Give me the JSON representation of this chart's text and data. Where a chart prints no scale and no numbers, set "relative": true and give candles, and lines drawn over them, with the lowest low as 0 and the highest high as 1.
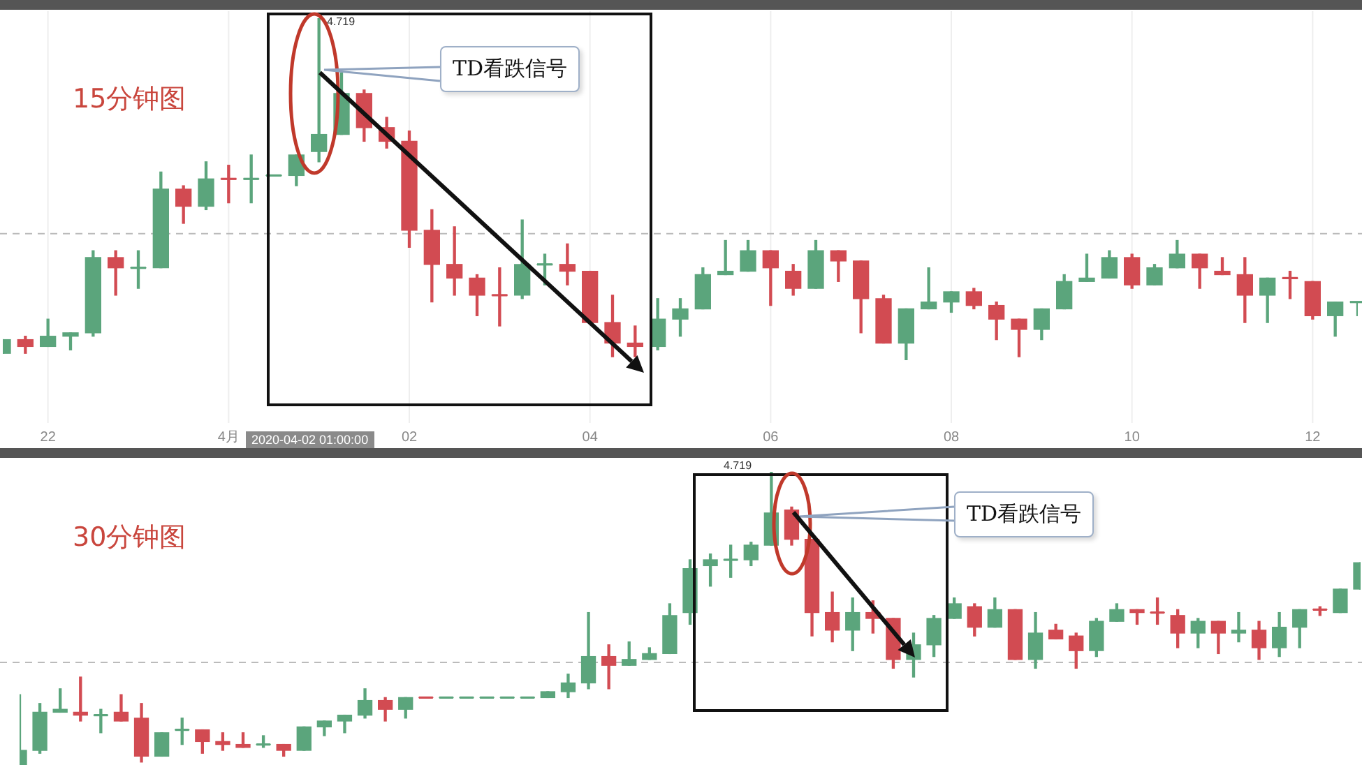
{
  "chart_data": [
    {
      "type": "candlestick",
      "title": "15分钟图",
      "relative": true,
      "grid": "x",
      "tick_labels": "x",
      "categories": [
        null,
        null,
        "22",
        null,
        null,
        null,
        null,
        null,
        null,
        null,
        "4月",
        null,
        null,
        null,
        null,
        null,
        null,
        null,
        "02",
        null,
        null,
        null,
        null,
        null,
        null,
        null,
        "04",
        null,
        null,
        null,
        null,
        null,
        null,
        null,
        "06",
        null,
        null,
        null,
        null,
        null,
        null,
        null,
        "08",
        null,
        null,
        null,
        null,
        null,
        null,
        null,
        "10",
        null,
        null,
        null,
        null,
        null,
        null,
        null,
        "12",
        null,
        null
      ],
      "ohlc": [
        [
          0.02,
          0.06,
          0.02,
          0.06
        ],
        [
          0.06,
          0.07,
          0.02,
          0.04
        ],
        [
          0.04,
          0.12,
          0.04,
          0.07
        ],
        [
          0.07,
          0.08,
          0.03,
          0.08
        ],
        [
          0.08,
          0.32,
          0.07,
          0.3
        ],
        [
          0.3,
          0.32,
          0.19,
          0.27
        ],
        [
          0.27,
          0.32,
          0.21,
          0.27
        ],
        [
          0.27,
          0.55,
          0.27,
          0.5
        ],
        [
          0.5,
          0.51,
          0.4,
          0.45
        ],
        [
          0.45,
          0.58,
          0.44,
          0.53
        ],
        [
          0.53,
          0.57,
          0.46,
          0.53
        ],
        [
          0.53,
          0.6,
          0.46,
          0.53
        ],
        [
          0.54,
          0.54,
          0.54,
          0.54
        ],
        [
          0.54,
          0.6,
          0.51,
          0.6
        ],
        [
          0.61,
          1,
          0.58,
          0.66
        ],
        [
          0.66,
          0.84,
          0.66,
          0.78
        ],
        [
          0.78,
          0.79,
          0.64,
          0.68
        ],
        [
          0.68,
          0.71,
          0.62,
          0.64
        ],
        [
          0.64,
          0.67,
          0.33,
          0.38
        ],
        [
          0.38,
          0.44,
          0.17,
          0.28
        ],
        [
          0.28,
          0.39,
          0.19,
          0.24
        ],
        [
          0.24,
          0.25,
          0.13,
          0.19
        ],
        [
          0.19,
          0.27,
          0.1,
          0.19
        ],
        [
          0.19,
          0.41,
          0.18,
          0.28
        ],
        [
          0.28,
          0.31,
          0.22,
          0.28
        ],
        [
          0.28,
          0.34,
          0.22,
          0.26
        ],
        [
          0.26,
          0.26,
          0.11,
          0.11
        ],
        [
          0.11,
          0.19,
          0.01,
          0.05
        ],
        [
          0.05,
          0.1,
          0.01,
          0.04
        ],
        [
          0.04,
          0.18,
          0.03,
          0.12
        ],
        [
          0.12,
          0.18,
          0.07,
          0.15
        ],
        [
          0.15,
          0.27,
          0.15,
          0.25
        ],
        [
          0.25,
          0.35,
          0.25,
          0.26
        ],
        [
          0.26,
          0.35,
          0.26,
          0.32
        ],
        [
          0.32,
          0.32,
          0.16,
          0.27
        ],
        [
          0.26,
          0.28,
          0.19,
          0.21
        ],
        [
          0.21,
          0.35,
          0.21,
          0.32
        ],
        [
          0.32,
          0.32,
          0.23,
          0.29
        ],
        [
          0.29,
          0.29,
          0.08,
          0.18
        ],
        [
          0.18,
          0.19,
          0.05,
          0.05
        ],
        [
          0.05,
          0.15,
          0,
          0.15
        ],
        [
          0.15,
          0.27,
          0.15,
          0.17
        ],
        [
          0.17,
          0.2,
          0.14,
          0.2
        ],
        [
          0.2,
          0.21,
          0.15,
          0.16
        ],
        [
          0.16,
          0.17,
          0.06,
          0.12
        ],
        [
          0.12,
          0.12,
          0.01,
          0.09
        ],
        [
          0.09,
          0.15,
          0.06,
          0.15
        ],
        [
          0.15,
          0.25,
          0.15,
          0.23
        ],
        [
          0.23,
          0.31,
          0.23,
          0.24
        ],
        [
          0.24,
          0.32,
          0.24,
          0.3
        ],
        [
          0.3,
          0.31,
          0.21,
          0.22
        ],
        [
          0.22,
          0.28,
          0.22,
          0.27
        ],
        [
          0.27,
          0.35,
          0.27,
          0.31
        ],
        [
          0.31,
          0.31,
          0.21,
          0.27
        ],
        [
          0.26,
          0.3,
          0.25,
          0.25
        ],
        [
          0.25,
          0.3,
          0.11,
          0.19
        ],
        [
          0.19,
          0.24,
          0.11,
          0.24
        ],
        [
          0.24,
          0.26,
          0.18,
          0.24
        ],
        [
          0.23,
          0.23,
          0.12,
          0.13
        ],
        [
          0.13,
          0.17,
          0.07,
          0.17
        ],
        [
          0.17,
          0.17,
          0.13,
          0.17
        ]
      ],
      "colors": [
        "#5ba57c",
        "#d24b52",
        "#5ba57c",
        "#5ba57c",
        "#5ba57c",
        "#d24b52",
        "#5ba57c",
        "#5ba57c",
        "#d24b52",
        "#5ba57c",
        "#d24b52",
        "#5ba57c",
        "#5ba57c",
        "#5ba57c",
        "#5ba57c",
        "#5ba57c",
        "#d24b52",
        "#d24b52",
        "#d24b52",
        "#d24b52",
        "#d24b52",
        "#d24b52",
        "#d24b52",
        "#5ba57c",
        "#5ba57c",
        "#d24b52",
        "#d24b52",
        "#d24b52",
        "#d24b52",
        "#5ba57c",
        "#5ba57c",
        "#5ba57c",
        "#5ba57c",
        "#5ba57c",
        "#d24b52",
        "#d24b52",
        "#5ba57c",
        "#d24b52",
        "#d24b52",
        "#d24b52",
        "#5ba57c",
        "#5ba57c",
        "#5ba57c",
        "#d24b52",
        "#d24b52",
        "#d24b52",
        "#5ba57c",
        "#5ba57c",
        "#5ba57c",
        "#5ba57c",
        "#d24b52",
        "#5ba57c",
        "#5ba57c",
        "#d24b52",
        "#d24b52",
        "#d24b52",
        "#5ba57c",
        "#d24b52",
        "#d24b52",
        "#5ba57c",
        "#5ba57c"
      ],
      "ref_lines": [
        {
          "axis": "y",
          "value": 0.37,
          "color": "#bbbbbb",
          "line_style": "dashed"
        }
      ],
      "annotations": [
        "TD看跌信号",
        "4.719",
        "2020-04-02 01:00:00"
      ]
    },
    {
      "type": "candlestick",
      "title": "30分钟图",
      "relative": true,
      "tick_labels": false,
      "categories": [
        null,
        null,
        null,
        null,
        null,
        null,
        null,
        null,
        null,
        null,
        null,
        null,
        null,
        null,
        null,
        null,
        null,
        null,
        null,
        null,
        null,
        null,
        null,
        null,
        null,
        null,
        null,
        null,
        null,
        null,
        null,
        null,
        null,
        null,
        null,
        null,
        null,
        null,
        null,
        null,
        null,
        null,
        null,
        null,
        null,
        null,
        null,
        null,
        null,
        null,
        null,
        null,
        null,
        null,
        null,
        null,
        null,
        null,
        null,
        null,
        null,
        null,
        null,
        null,
        null,
        null,
        null
      ],
      "ohlc": [
        [
          0,
          0.24,
          0,
          0.05
        ],
        [
          0.05,
          0.21,
          0.04,
          0.18
        ],
        [
          0.18,
          0.26,
          0.18,
          0.19
        ],
        [
          0.18,
          0.3,
          0.15,
          0.17
        ],
        [
          0.17,
          0.19,
          0.11,
          0.17
        ],
        [
          0.18,
          0.24,
          0.15,
          0.15
        ],
        [
          0.16,
          0.21,
          0.01,
          0.03
        ],
        [
          0.03,
          0.11,
          0.03,
          0.11
        ],
        [
          0.12,
          0.16,
          0.07,
          0.12
        ],
        [
          0.12,
          0.12,
          0.04,
          0.08
        ],
        [
          0.08,
          0.11,
          0.05,
          0.07
        ],
        [
          0.07,
          0.11,
          0.06,
          0.06
        ],
        [
          0.07,
          0.1,
          0.06,
          0.07
        ],
        [
          0.07,
          0.07,
          0.03,
          0.05
        ],
        [
          0.05,
          0.13,
          0.05,
          0.13
        ],
        [
          0.13,
          0.15,
          0.1,
          0.15
        ],
        [
          0.15,
          0.17,
          0.11,
          0.17
        ],
        [
          0.17,
          0.26,
          0.16,
          0.22
        ],
        [
          0.22,
          0.23,
          0.15,
          0.19
        ],
        [
          0.19,
          0.23,
          0.16,
          0.23
        ],
        [
          0.23,
          0.23,
          0.23,
          0.23
        ],
        [
          0.23,
          0.23,
          0.23,
          0.23
        ],
        [
          0.23,
          0.23,
          0.23,
          0.23
        ],
        [
          0.23,
          0.23,
          0.23,
          0.23
        ],
        [
          0.23,
          0.23,
          0.23,
          0.23
        ],
        [
          0.23,
          0.23,
          0.23,
          0.23
        ],
        [
          0.23,
          0.25,
          0.23,
          0.25
        ],
        [
          0.25,
          0.31,
          0.23,
          0.28
        ],
        [
          0.28,
          0.52,
          0.26,
          0.37
        ],
        [
          0.37,
          0.41,
          0.26,
          0.34
        ],
        [
          0.34,
          0.42,
          0.34,
          0.36
        ],
        [
          0.36,
          0.4,
          0.36,
          0.38
        ],
        [
          0.38,
          0.55,
          0.38,
          0.51
        ],
        [
          0.52,
          0.7,
          0.48,
          0.67
        ],
        [
          0.68,
          0.72,
          0.61,
          0.7
        ],
        [
          0.7,
          0.75,
          0.64,
          0.7
        ],
        [
          0.7,
          0.76,
          0.68,
          0.75
        ],
        [
          0.75,
          1,
          0.75,
          0.86
        ],
        [
          0.87,
          0.88,
          0.75,
          0.77
        ],
        [
          0.77,
          0.77,
          0.44,
          0.52
        ],
        [
          0.52,
          0.59,
          0.42,
          0.46
        ],
        [
          0.46,
          0.57,
          0.39,
          0.52
        ],
        [
          0.52,
          0.56,
          0.45,
          0.5
        ],
        [
          0.5,
          0.5,
          0.33,
          0.36
        ],
        [
          0.36,
          0.45,
          0.3,
          0.41
        ],
        [
          0.41,
          0.51,
          0.37,
          0.5
        ],
        [
          0.5,
          0.57,
          0.5,
          0.55
        ],
        [
          0.54,
          0.55,
          0.44,
          0.47
        ],
        [
          0.47,
          0.57,
          0.47,
          0.53
        ],
        [
          0.53,
          0.53,
          0.36,
          0.36
        ],
        [
          0.36,
          0.52,
          0.33,
          0.45
        ],
        [
          0.46,
          0.48,
          0.43,
          0.43
        ],
        [
          0.44,
          0.45,
          0.33,
          0.39
        ],
        [
          0.39,
          0.5,
          0.37,
          0.49
        ],
        [
          0.49,
          0.55,
          0.49,
          0.53
        ],
        [
          0.53,
          0.53,
          0.48,
          0.52
        ],
        [
          0.52,
          0.57,
          0.48,
          0.52
        ],
        [
          0.51,
          0.53,
          0.4,
          0.45
        ],
        [
          0.45,
          0.5,
          0.4,
          0.49
        ],
        [
          0.49,
          0.49,
          0.38,
          0.45
        ],
        [
          0.45,
          0.52,
          0.42,
          0.46
        ],
        [
          0.46,
          0.49,
          0.36,
          0.4
        ],
        [
          0.4,
          0.52,
          0.37,
          0.47
        ],
        [
          0.47,
          0.53,
          0.4,
          0.53
        ],
        [
          0.53,
          0.54,
          0.51,
          0.53
        ],
        [
          0.52,
          0.6,
          0.52,
          0.6
        ],
        [
          0.6,
          0.69,
          0.6,
          0.69
        ]
      ],
      "colors": [
        "#5ba57c",
        "#5ba57c",
        "#5ba57c",
        "#d24b52",
        "#5ba57c",
        "#d24b52",
        "#d24b52",
        "#5ba57c",
        "#5ba57c",
        "#d24b52",
        "#d24b52",
        "#d24b52",
        "#5ba57c",
        "#d24b52",
        "#5ba57c",
        "#5ba57c",
        "#5ba57c",
        "#5ba57c",
        "#d24b52",
        "#5ba57c",
        "#d24b52",
        "#5ba57c",
        "#5ba57c",
        "#5ba57c",
        "#5ba57c",
        "#5ba57c",
        "#5ba57c",
        "#5ba57c",
        "#5ba57c",
        "#d24b52",
        "#5ba57c",
        "#5ba57c",
        "#5ba57c",
        "#5ba57c",
        "#5ba57c",
        "#5ba57c",
        "#5ba57c",
        "#5ba57c",
        "#d24b52",
        "#d24b52",
        "#d24b52",
        "#5ba57c",
        "#d24b52",
        "#d24b52",
        "#5ba57c",
        "#5ba57c",
        "#5ba57c",
        "#d24b52",
        "#5ba57c",
        "#d24b52",
        "#5ba57c",
        "#d24b52",
        "#d24b52",
        "#5ba57c",
        "#5ba57c",
        "#d24b52",
        "#d24b52",
        "#d24b52",
        "#5ba57c",
        "#d24b52",
        "#5ba57c",
        "#d24b52",
        "#5ba57c",
        "#5ba57c",
        "#d24b52",
        "#5ba57c",
        "#5ba57c"
      ],
      "ref_lines": [
        {
          "axis": "y",
          "value": 0.35,
          "color": "#bbbbbb",
          "line_style": "dashed"
        }
      ],
      "annotations": [
        "TD看跌信号",
        "4.719"
      ]
    }
  ]
}
